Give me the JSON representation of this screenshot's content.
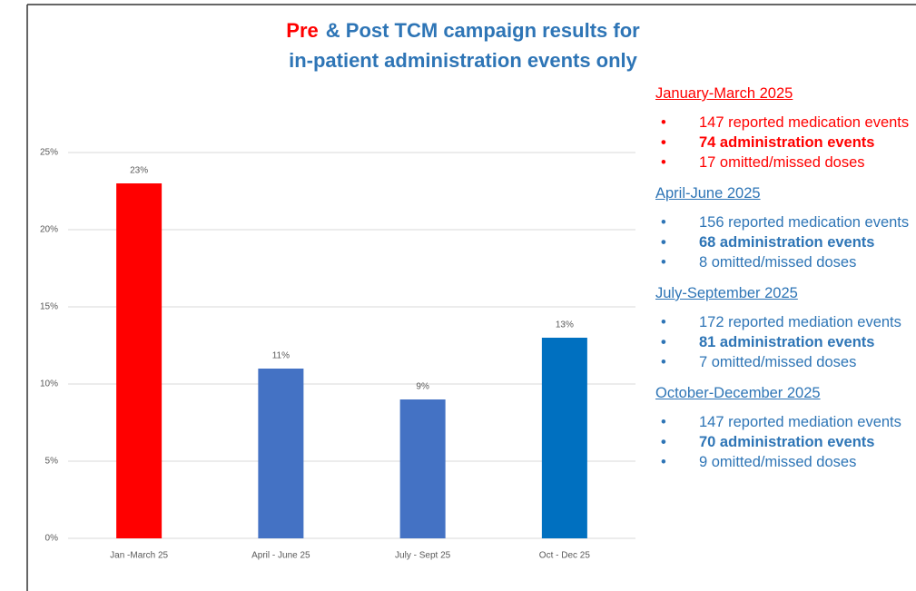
{
  "chart_data": {
    "type": "bar",
    "title": [
      "Pre",
      "& Post TCM campaign results for",
      "in-patient administration events only"
    ],
    "title_colors": [
      "#ff0000",
      "#2e75b6"
    ],
    "categories": [
      "Jan -March 25",
      "April - June 25",
      "July - Sept 25",
      "Oct - Dec 25"
    ],
    "values": [
      23,
      11,
      9,
      13
    ],
    "value_labels": [
      "23%",
      "11%",
      "9%",
      "13%"
    ],
    "colors": [
      "#ff0000",
      "#4472c4",
      "#4472c4",
      "#0070c0"
    ],
    "ylim": [
      0,
      25
    ],
    "yticks": [
      {
        "value": 0,
        "label": "0%"
      },
      {
        "value": 5,
        "label": "5%"
      },
      {
        "value": 10,
        "label": "10%"
      },
      {
        "value": 15,
        "label": "15%"
      },
      {
        "value": 20,
        "label": "20%"
      },
      {
        "value": 25,
        "label": "25%"
      }
    ],
    "grid": true
  },
  "notes": [
    {
      "heading": "January-March  2025",
      "color": "#ff0000",
      "items": [
        {
          "text": "147 reported medication events",
          "bold": false
        },
        {
          "text": "74 administration events",
          "bold": true
        },
        {
          "text": "17 omitted/missed doses",
          "bold": false
        }
      ]
    },
    {
      "heading": "April-June 2025",
      "color": "#2e75b6",
      "items": [
        {
          "text": "156 reported medication events",
          "bold": false
        },
        {
          "text": "68 administration events",
          "bold": true
        },
        {
          "text": "8 omitted/missed doses",
          "bold": false
        }
      ]
    },
    {
      "heading": "July-September 2025",
      "color": "#2e75b6",
      "items": [
        {
          "text": "172 reported mediation events",
          "bold": false
        },
        {
          "text": "81 administration events",
          "bold": true
        },
        {
          "text": "7 omitted/missed doses",
          "bold": false
        }
      ]
    },
    {
      "heading": "October-December 2025",
      "color": "#2e75b6",
      "items": [
        {
          "text": "147 reported mediation events",
          "bold": false
        },
        {
          "text": "70 administration events",
          "bold": true
        },
        {
          "text": "9 omitted/missed doses",
          "bold": false
        }
      ]
    }
  ]
}
